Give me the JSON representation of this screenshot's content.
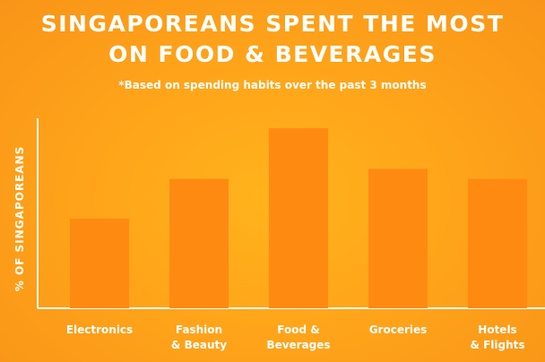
{
  "chart_data": {
    "type": "bar",
    "title": "SINGAPOREANS SPENT THE MOST\nON FOOD & BEVERAGES",
    "subtitle": "*Based on spending habits over the past 3 months",
    "ylabel": "% OF SINGAPOREANS",
    "xlabel": "",
    "categories": [
      "Electronics",
      "Fashion\n& Beauty",
      "Food &\nBeverages",
      "Groceries",
      "Hotels\n& Flights"
    ],
    "values": [
      99,
      143,
      199,
      154,
      143
    ],
    "ylim": [
      0,
      210
    ],
    "grid": false,
    "legend": "none",
    "colors": {
      "bar": "#ff8a12",
      "axis": "#ffffff",
      "text": "#ffffff"
    }
  }
}
